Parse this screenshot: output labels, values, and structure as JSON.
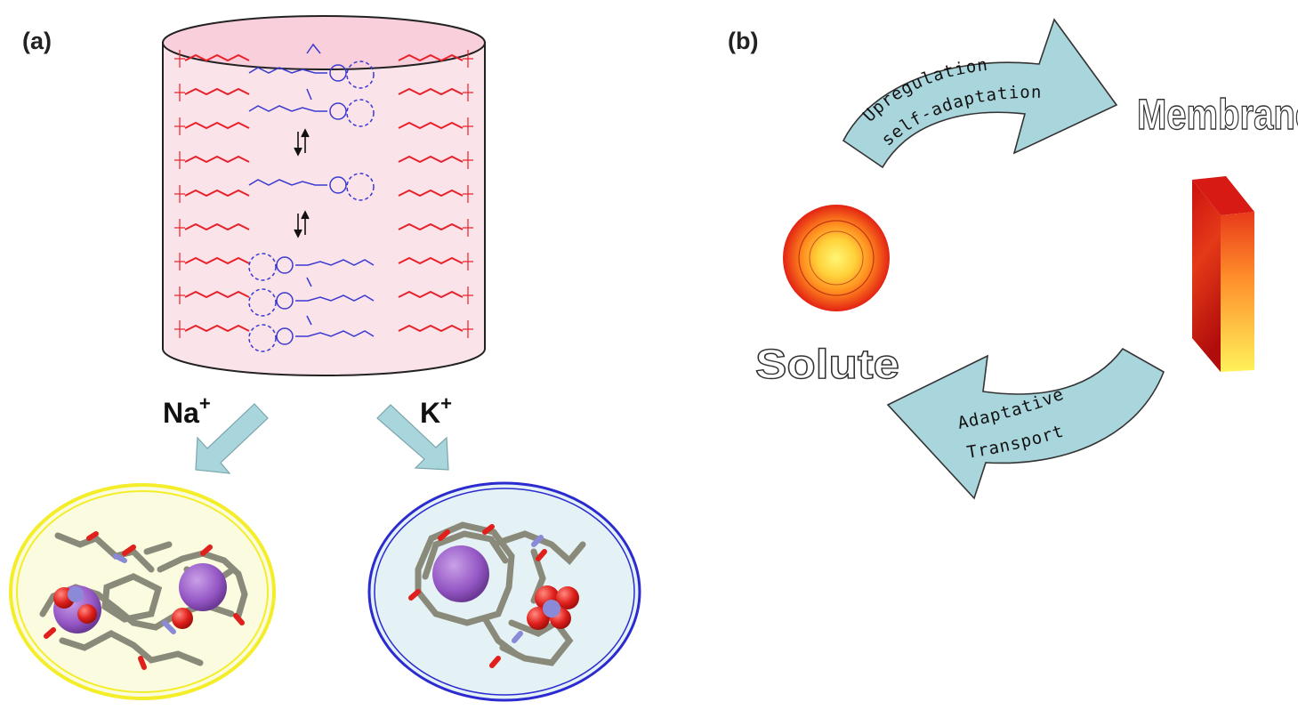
{
  "panel_a": {
    "label": "(a)",
    "ion_left": {
      "symbol": "Na",
      "charge": "+"
    },
    "ion_right": {
      "symbol": "K",
      "charge": "+"
    }
  },
  "panel_b": {
    "label": "(b)",
    "top_arrow": {
      "line1": "Upregulation",
      "line2": "self-adaptation"
    },
    "bottom_arrow": {
      "line1": "Adaptative",
      "line2": "Transport"
    },
    "membrane_word": "Membrane",
    "solute_word": "Solute"
  },
  "colors": {
    "lipid_red": "#e8212a",
    "channel_blue": "#3a3ad0",
    "cylinder_fill": "#fbe3ea",
    "arrow_fill": "#a9d6dc",
    "na_ring": "#f4ee2a",
    "k_ring": "#2b2bd0",
    "atom_violet": "#9b59c9",
    "atom_red": "#e0201c",
    "atom_gray": "#8a8a7a"
  }
}
